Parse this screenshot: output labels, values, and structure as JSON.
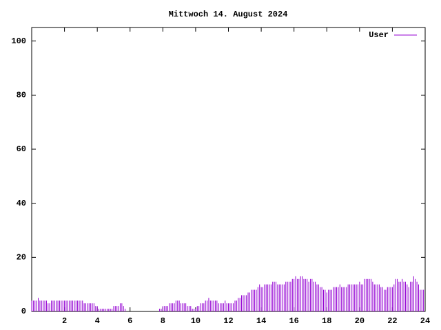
{
  "chart_data": {
    "type": "impulses",
    "title": "Mittwoch 14. August 2024",
    "x": [
      0,
      0.1,
      0.2,
      0.3,
      0.4,
      0.5,
      0.6,
      0.7,
      0.8,
      0.9,
      1,
      1.1,
      1.2,
      1.3,
      1.4,
      1.5,
      1.6,
      1.7,
      1.8,
      1.9,
      2,
      2.1,
      2.2,
      2.3,
      2.4,
      2.5,
      2.6,
      2.7,
      2.8,
      2.9,
      3,
      3.1,
      3.2,
      3.3,
      3.4,
      3.5,
      3.6,
      3.7,
      3.8,
      3.9,
      4,
      4.1,
      4.2,
      4.3,
      4.4,
      4.5,
      4.6,
      4.7,
      4.8,
      4.9,
      5,
      5.1,
      5.2,
      5.3,
      5.4,
      5.5,
      5.6,
      5.7,
      5.8,
      5.9,
      6,
      6.1,
      6.2,
      6.3,
      6.4,
      6.5,
      6.6,
      6.7,
      6.8,
      6.9,
      7,
      7.1,
      7.2,
      7.3,
      7.4,
      7.5,
      7.6,
      7.7,
      7.8,
      7.9,
      8,
      8.1,
      8.2,
      8.3,
      8.4,
      8.5,
      8.6,
      8.7,
      8.8,
      8.9,
      9,
      9.1,
      9.2,
      9.3,
      9.4,
      9.5,
      9.6,
      9.7,
      9.8,
      9.9,
      10,
      10.1,
      10.2,
      10.3,
      10.4,
      10.5,
      10.6,
      10.7,
      10.8,
      10.9,
      11,
      11.1,
      11.2,
      11.3,
      11.4,
      11.5,
      11.6,
      11.7,
      11.8,
      11.9,
      12,
      12.1,
      12.2,
      12.3,
      12.4,
      12.5,
      12.6,
      12.7,
      12.8,
      12.9,
      13,
      13.1,
      13.2,
      13.3,
      13.4,
      13.5,
      13.6,
      13.7,
      13.8,
      13.9,
      14,
      14.1,
      14.2,
      14.3,
      14.4,
      14.5,
      14.6,
      14.7,
      14.8,
      14.9,
      15,
      15.1,
      15.2,
      15.3,
      15.4,
      15.5,
      15.6,
      15.7,
      15.8,
      15.9,
      16,
      16.1,
      16.2,
      16.3,
      16.4,
      16.5,
      16.6,
      16.7,
      16.8,
      16.9,
      17,
      17.1,
      17.2,
      17.3,
      17.4,
      17.5,
      17.6,
      17.7,
      17.8,
      17.9,
      18,
      18.1,
      18.2,
      18.3,
      18.4,
      18.5,
      18.6,
      18.7,
      18.8,
      18.9,
      19,
      19.1,
      19.2,
      19.3,
      19.4,
      19.5,
      19.6,
      19.7,
      19.8,
      19.9,
      20,
      20.1,
      20.2,
      20.3,
      20.4,
      20.5,
      20.6,
      20.7,
      20.8,
      20.9,
      21,
      21.1,
      21.2,
      21.3,
      21.4,
      21.5,
      21.6,
      21.7,
      21.8,
      21.9,
      22,
      22.1,
      22.2,
      22.3,
      22.4,
      22.5,
      22.6,
      22.7,
      22.8,
      22.9,
      23,
      23.1,
      23.2,
      23.3,
      23.4,
      23.5,
      23.6,
      23.7,
      23.8,
      23.9
    ],
    "series": [
      {
        "name": "User",
        "color": "#9400d3",
        "values": [
          4,
          4,
          4,
          4,
          5,
          4,
          4,
          4,
          4,
          4,
          3,
          3,
          4,
          4,
          4,
          4,
          4,
          4,
          4,
          4,
          4,
          4,
          4,
          4,
          4,
          4,
          4,
          4,
          4,
          4,
          4,
          4,
          3,
          3,
          3,
          3,
          3,
          3,
          3,
          2,
          2,
          1,
          1,
          1,
          1,
          1,
          1,
          1,
          1,
          1,
          2,
          2,
          2,
          2,
          3,
          3,
          2,
          1,
          0,
          0,
          0,
          0,
          0,
          0,
          0,
          0,
          0,
          0,
          0,
          0,
          0,
          0,
          0,
          0,
          0,
          0,
          0,
          0,
          1,
          1,
          2,
          2,
          2,
          2,
          3,
          3,
          3,
          3,
          4,
          4,
          4,
          3,
          3,
          3,
          3,
          2,
          2,
          2,
          1,
          1,
          1,
          2,
          2,
          3,
          3,
          3,
          4,
          4,
          5,
          4,
          4,
          4,
          4,
          4,
          3,
          3,
          3,
          3,
          4,
          3,
          3,
          3,
          3,
          3,
          4,
          4,
          5,
          5,
          6,
          6,
          6,
          6,
          7,
          7,
          8,
          8,
          8,
          8,
          9,
          10,
          9,
          9,
          10,
          10,
          10,
          10,
          10,
          11,
          11,
          11,
          10,
          10,
          10,
          10,
          10,
          11,
          11,
          11,
          11,
          12,
          12,
          13,
          12,
          12,
          13,
          13,
          12,
          12,
          12,
          11,
          12,
          12,
          11,
          11,
          10,
          10,
          9,
          9,
          8,
          8,
          7,
          8,
          8,
          8,
          9,
          9,
          9,
          9,
          10,
          9,
          9,
          9,
          9,
          10,
          10,
          10,
          10,
          10,
          10,
          10,
          11,
          10,
          10,
          12,
          12,
          12,
          12,
          12,
          11,
          10,
          10,
          10,
          10,
          9,
          9,
          8,
          8,
          9,
          9,
          9,
          9,
          10,
          12,
          12,
          11,
          11,
          12,
          11,
          11,
          10,
          9,
          11,
          11,
          13,
          12,
          11,
          10,
          8,
          8,
          8
        ]
      }
    ],
    "xlim": [
      0,
      24
    ],
    "xticks": [
      2,
      4,
      6,
      8,
      10,
      12,
      14,
      16,
      18,
      20,
      22,
      24
    ],
    "ylim": [
      0,
      105
    ],
    "yticks": [
      0,
      20,
      40,
      60,
      80,
      100
    ]
  }
}
